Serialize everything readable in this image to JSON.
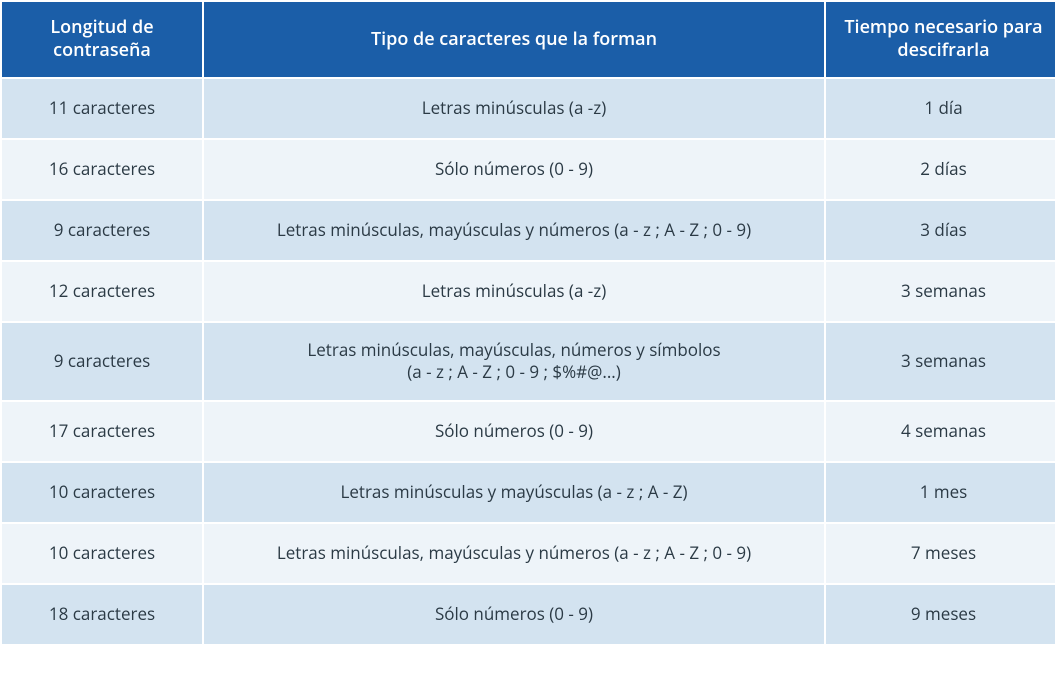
{
  "table": {
    "header_bg": "#1b5ea8",
    "header_color": "#ffffff",
    "row_odd_bg": "#d3e3f0",
    "row_even_bg": "#eef4f9",
    "text_color": "#2b3a45",
    "columns": [
      "Longitud de contraseña",
      "Tipo de caracteres que la forman",
      "Tiempo necesario para descifrarla"
    ],
    "rows": [
      {
        "len": "11 caracteres",
        "type": "Letras minúsculas (a -z)",
        "time": "1 día"
      },
      {
        "len": "16 caracteres",
        "type": "Sólo números (0 - 9)",
        "time": "2 días"
      },
      {
        "len": "9 caracteres",
        "type": "Letras minúsculas, mayúsculas y números (a - z ; A - Z ; 0 - 9)",
        "time": "3 días"
      },
      {
        "len": "12 caracteres",
        "type": "Letras minúsculas (a -z)",
        "time": "3 semanas"
      },
      {
        "len": "9 caracteres",
        "type": "Letras minúsculas, mayúsculas, números y símbolos\n(a - z ; A - Z ; 0 - 9 ; $%#@...)",
        "time": "3 semanas"
      },
      {
        "len": "17 caracteres",
        "type": "Sólo números (0 - 9)",
        "time": "4 semanas"
      },
      {
        "len": "10 caracteres",
        "type": "Letras minúsculas y mayúsculas (a - z ; A - Z)",
        "time": "1 mes"
      },
      {
        "len": "10 caracteres",
        "type": "Letras minúsculas, mayúsculas y números (a - z ; A - Z ; 0 - 9)",
        "time": "7 meses"
      },
      {
        "len": "18 caracteres",
        "type": "Sólo números (0 - 9)",
        "time": "9 meses"
      }
    ]
  }
}
